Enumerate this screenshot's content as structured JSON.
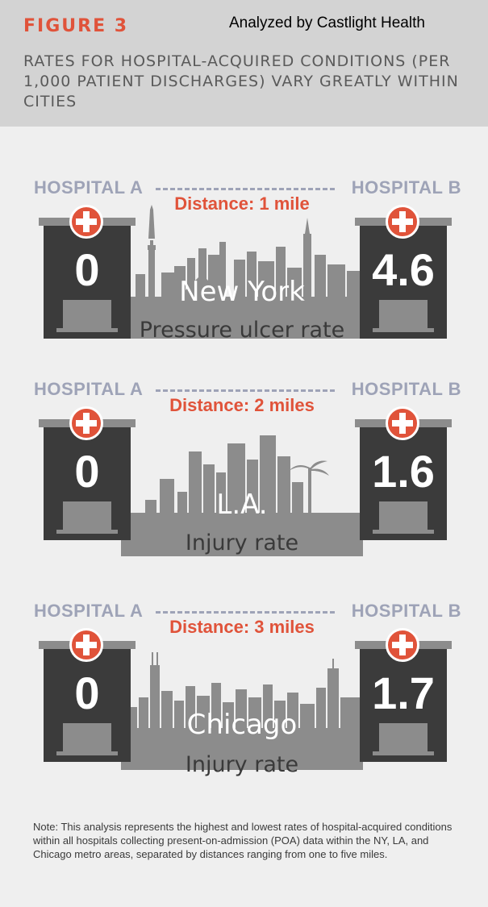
{
  "header": {
    "figure_label": "FIGURE 3",
    "attribution": "Analyzed by Castlight Health",
    "title": "RATES FOR HOSPITAL-ACQUIRED CONDITIONS (PER 1,000 PATIENT DISCHARGES) VARY GREATLY WITHIN CITIES"
  },
  "colors": {
    "accent": "#e0533a",
    "label_grey": "#9ea3b7",
    "building": "#3b3b3b",
    "skyline": "#8c8c8c"
  },
  "panels": [
    {
      "hospital_a_label": "HOSPITAL A",
      "hospital_b_label": "HOSPITAL B",
      "distance": "Distance: 1 mile",
      "hospital_a_value": "0",
      "hospital_b_value": "4.6",
      "city": "New York",
      "metric": "Pressure ulcer rate"
    },
    {
      "hospital_a_label": "HOSPITAL A",
      "hospital_b_label": "HOSPITAL B",
      "distance": "Distance: 2 miles",
      "hospital_a_value": "0",
      "hospital_b_value": "1.6",
      "city": "L.A.",
      "metric": "Injury rate"
    },
    {
      "hospital_a_label": "HOSPITAL A",
      "hospital_b_label": "HOSPITAL B",
      "distance": "Distance: 3 miles",
      "hospital_a_value": "0",
      "hospital_b_value": "1.7",
      "city": "Chicago",
      "metric": "Injury rate"
    }
  ],
  "note": "Note: This analysis represents the highest and lowest rates of hospital-acquired conditions within all hospitals collecting present-on-admission (POA) data within the NY, LA, and Chicago metro areas, separated by distances ranging from one to five miles."
}
